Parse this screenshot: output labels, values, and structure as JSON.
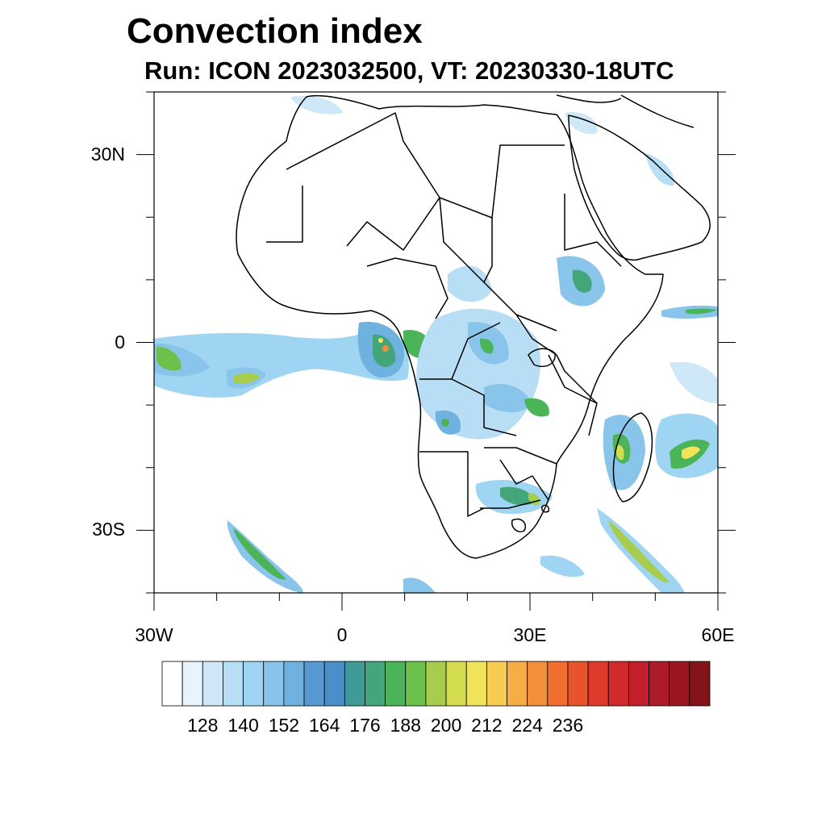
{
  "title": "Convection index",
  "subtitle": "Run: ICON 2023032500,  VT: 20230330-18UTC",
  "map": {
    "lon_range": [
      -30,
      60
    ],
    "lat_range": [
      -40,
      40
    ],
    "lat_tick_labels": [
      {
        "lat": 30,
        "label": "30N"
      },
      {
        "lat": 0,
        "label": "0"
      },
      {
        "lat": -30,
        "label": "30S"
      }
    ],
    "lon_tick_labels": [
      {
        "lon": -30,
        "label": "30W"
      },
      {
        "lon": 0,
        "label": "0"
      },
      {
        "lon": 30,
        "label": "30E"
      },
      {
        "lon": 60,
        "label": "60E"
      }
    ]
  },
  "colorbar": {
    "labels": [
      "128",
      "140",
      "152",
      "164",
      "176",
      "188",
      "200",
      "212",
      "224",
      "236"
    ],
    "colors": [
      "#ffffff",
      "#e8f4fb",
      "#cfe8f7",
      "#b8def5",
      "#9fd4f2",
      "#89c4ea",
      "#6fb2e0",
      "#579ad3",
      "#4a8fc8",
      "#3f9a9a",
      "#45a57a",
      "#4cb458",
      "#6ec04d",
      "#a8cd4e",
      "#d4dc50",
      "#f2e45a",
      "#f8cc50",
      "#f7ad45",
      "#f38e3a",
      "#ef6e30",
      "#e8532b",
      "#df3a2b",
      "#d12a2c",
      "#c1202c",
      "#ae1b28",
      "#9a1722",
      "#84141c"
    ]
  }
}
